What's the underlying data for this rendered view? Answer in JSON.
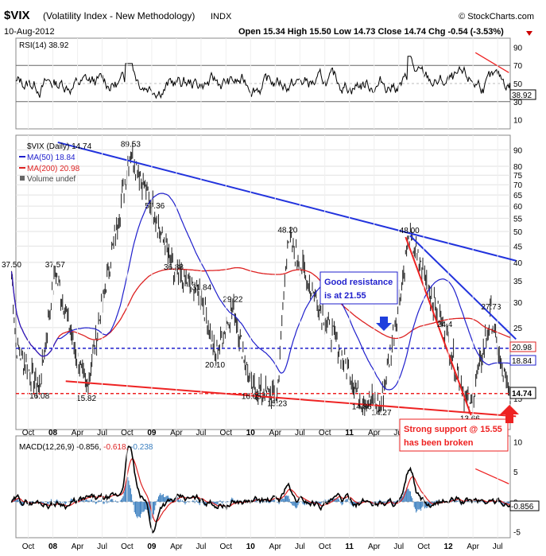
{
  "header": {
    "symbol": "$VIX",
    "name": "(Volatility Index - New Methodology)",
    "exchange": "INDX",
    "brand": "© StockCharts.com",
    "date": "10-Aug-2012",
    "ohlc": "Open 15.34  High 15.50  Low 14.73  Close 14.74  Chg -0.54 (-3.53%)"
  },
  "chart_data": [
    {
      "type": "line",
      "panel": "rsi",
      "label": "RSI(14) 38.92",
      "value": 38.92,
      "value_label": "38.92",
      "ylim": [
        0,
        100
      ],
      "y_ticks": [
        10,
        30,
        50,
        70,
        90
      ],
      "reference_lines": [
        30,
        50,
        70
      ],
      "y_tick_labels": [
        "90",
        "70",
        "50",
        "30",
        "10"
      ]
    },
    {
      "type": "line",
      "panel": "price",
      "series": [
        {
          "name": "$VIX (Daily) 14.74",
          "color": "#000000",
          "last": 14.74
        },
        {
          "name": "MA(50) 18.84",
          "color": "#1f1fcc",
          "last": 18.84
        },
        {
          "name": "MA(200) 20.98",
          "color": "#dd2222",
          "last": 20.98
        },
        {
          "name": "Volume undef",
          "color": "#666666"
        }
      ],
      "scale": "log",
      "ylim": [
        12,
        100
      ],
      "y_ticks": [
        15,
        20,
        25,
        30,
        35,
        40,
        45,
        50,
        55,
        60,
        65,
        70,
        75,
        80,
        90
      ],
      "last_value_labels": [
        "20.98",
        "18.84",
        "14.74"
      ],
      "x_ticks": [
        "Oct",
        "08",
        "Apr",
        "Jul",
        "Oct",
        "09",
        "Apr",
        "Jul",
        "Oct",
        "10",
        "Apr",
        "Jul",
        "Oct",
        "11",
        "Apr",
        "Jul",
        "Oct",
        "12",
        "Apr",
        "Jul"
      ],
      "x_range": [
        "2007-09-01",
        "2012-08-10"
      ],
      "peak_labels": [
        {
          "date": "2007-08-16",
          "value": 37.5,
          "label": "37.50"
        },
        {
          "date": "2007-11-26",
          "value": 16.08,
          "label": "16.08"
        },
        {
          "date": "2008-01-22",
          "value": 37.57,
          "label": "37.57"
        },
        {
          "date": "2008-05-15",
          "value": 15.82,
          "label": "15.82"
        },
        {
          "date": "2008-10-24",
          "value": 89.53,
          "label": "89.53"
        },
        {
          "date": "2009-01-20",
          "value": 57.36,
          "label": "57.36"
        },
        {
          "date": "2009-03-30",
          "value": 36.88,
          "label": "36.88"
        },
        {
          "date": "2009-07-10",
          "value": 31.84,
          "label": "31.84"
        },
        {
          "date": "2009-08-28",
          "value": 20.1,
          "label": "20.10"
        },
        {
          "date": "2009-11-01",
          "value": 29.22,
          "label": "29.22"
        },
        {
          "date": "2010-01-08",
          "value": 16.05,
          "label": "16.05"
        },
        {
          "date": "2010-04-12",
          "value": 15.23,
          "label": "15.23"
        },
        {
          "date": "2010-05-20",
          "value": 48.2,
          "label": "48.20"
        },
        {
          "date": "2011-04-28",
          "value": 14.27,
          "label": "14.27"
        },
        {
          "date": "2011-02-15",
          "value": 14.86,
          "label": "14.86"
        },
        {
          "date": "2011-08-08",
          "value": 48.0,
          "label": "48.00"
        },
        {
          "date": "2012-03-16",
          "value": 13.66,
          "label": "13.66"
        },
        {
          "date": "2012-06-01",
          "value": 27.73,
          "label": "27.73"
        },
        {
          "date": "2011-12-15",
          "value": 24.4,
          "label": "24.4"
        }
      ],
      "annotations": {
        "resistance_text": [
          "Good resistance",
          "is at 21.55"
        ],
        "support_text": [
          "Strong support @ 15.55",
          "has been broken"
        ],
        "resistance_level": 21.55,
        "support_level": 15.55
      },
      "trendlines": [
        {
          "color": "#2233dd",
          "from": [
            "2008-02-01",
            95
          ],
          "to": [
            "2012-08-31",
            40.5
          ]
        },
        {
          "color": "#2233dd",
          "from": [
            "2011-08-10",
            48.5
          ],
          "to": [
            "2012-08-31",
            23
          ]
        },
        {
          "color": "#ee2222",
          "from": [
            "2008-03-01",
            17.0
          ],
          "to": [
            "2012-08-31",
            13.2
          ]
        },
        {
          "color": "#ee2222",
          "from": [
            "2011-07-25",
            48.0
          ],
          "to": [
            "2012-03-20",
            13.3
          ]
        }
      ]
    },
    {
      "type": "line",
      "panel": "macd",
      "label_prefix": "MACD(12,26,9)",
      "macd": -0.856,
      "macd_label": "-0.856,",
      "signal": -0.618,
      "signal_label": "-0.618,",
      "hist": -0.238,
      "hist_label": "-0.238",
      "last_value_label": "-0.856",
      "ylim": [
        -6,
        11
      ],
      "y_ticks": [
        -5,
        0,
        5,
        10
      ],
      "y_tick_labels": [
        "10",
        "5",
        "0",
        "-5"
      ]
    }
  ]
}
